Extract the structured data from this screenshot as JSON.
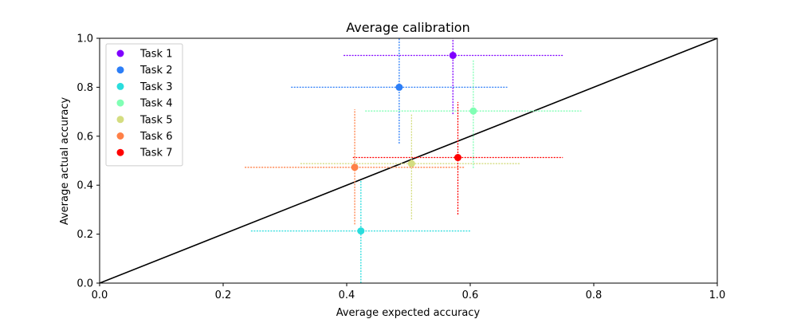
{
  "chart_data": {
    "type": "scatter",
    "title": "Average calibration",
    "xlabel": "Average expected accuracy",
    "ylabel": "Average actual accuracy",
    "xlim": [
      0.0,
      1.0
    ],
    "ylim": [
      0.0,
      1.0
    ],
    "x_ticks": [
      "0.0",
      "0.2",
      "0.4",
      "0.6",
      "0.8",
      "1.0"
    ],
    "y_ticks": [
      "0.0",
      "0.2",
      "0.4",
      "0.6",
      "0.8",
      "1.0"
    ],
    "grid": false,
    "legend_position": "top-left",
    "reference_line": {
      "from": [
        0,
        0
      ],
      "to": [
        1,
        1
      ],
      "color": "#000000"
    },
    "series": [
      {
        "name": "Task 1",
        "color": "#8000ff",
        "x": 0.572,
        "y": 0.93,
        "x_range": [
          0.395,
          0.75
        ],
        "y_range": [
          0.69,
          1.0
        ]
      },
      {
        "name": "Task 2",
        "color": "#2c7ef7",
        "x": 0.485,
        "y": 0.8,
        "x_range": [
          0.31,
          0.66
        ],
        "y_range": [
          0.57,
          1.0
        ]
      },
      {
        "name": "Task 3",
        "color": "#2adddd",
        "x": 0.423,
        "y": 0.213,
        "x_range": [
          0.245,
          0.6
        ],
        "y_range": [
          0.0,
          0.42
        ]
      },
      {
        "name": "Task 4",
        "color": "#80ffb4",
        "x": 0.605,
        "y": 0.703,
        "x_range": [
          0.43,
          0.78
        ],
        "y_range": [
          0.47,
          0.91
        ]
      },
      {
        "name": "Task 5",
        "color": "#d4dd80",
        "x": 0.505,
        "y": 0.488,
        "x_range": [
          0.325,
          0.68
        ],
        "y_range": [
          0.26,
          0.69
        ]
      },
      {
        "name": "Task 6",
        "color": "#ff8047",
        "x": 0.413,
        "y": 0.473,
        "x_range": [
          0.235,
          0.59
        ],
        "y_range": [
          0.24,
          0.71
        ]
      },
      {
        "name": "Task 7",
        "color": "#ff0000",
        "x": 0.58,
        "y": 0.513,
        "x_range": [
          0.41,
          0.75
        ],
        "y_range": [
          0.28,
          0.74
        ]
      }
    ]
  }
}
